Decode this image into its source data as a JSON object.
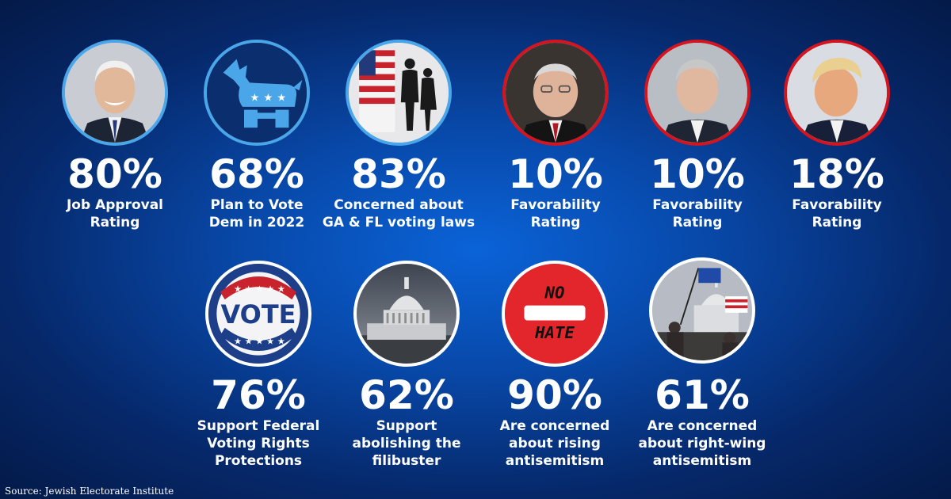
{
  "stats": [
    {
      "value": "80%",
      "label_lines": [
        "Job Approval",
        "Rating"
      ],
      "icon": "biden-portrait-icon",
      "ring": "#4aa6e8"
    },
    {
      "value": "68%",
      "label_lines": [
        "Plan to Vote",
        "Dem in 2022"
      ],
      "icon": "democratic-donkey-icon",
      "ring": "#4aa6e8"
    },
    {
      "value": "83%",
      "label_lines": [
        "Concerned about",
        "GA & FL voting laws"
      ],
      "icon": "voting-booth-icon",
      "ring": "#4aa6e8"
    },
    {
      "value": "10%",
      "label_lines": [
        "Favorability",
        "Rating"
      ],
      "icon": "mcconnell-portrait-icon",
      "ring": "#d4141e"
    },
    {
      "value": "10%",
      "label_lines": [
        "Favorability",
        "Rating"
      ],
      "icon": "mccarthy-portrait-icon",
      "ring": "#d4141e"
    },
    {
      "value": "18%",
      "label_lines": [
        "Favorability",
        "Rating"
      ],
      "icon": "trump-portrait-icon",
      "ring": "#d4141e"
    },
    {
      "value": "76%",
      "label_lines": [
        "Support Federal",
        "Voting Rights",
        "Protections"
      ],
      "icon": "vote-button-icon",
      "ring": "#ffffff"
    },
    {
      "value": "62%",
      "label_lines": [
        "Support",
        "abolishing the",
        "filibuster"
      ],
      "icon": "capitol-storm-icon",
      "ring": "#ffffff"
    },
    {
      "value": "90%",
      "label_lines": [
        "Are concerned",
        "about rising",
        "antisemitism"
      ],
      "icon": "no-hate-sign-icon",
      "ring": "#ffffff"
    },
    {
      "value": "61%",
      "label_lines": [
        "Are concerned",
        "about right-wing",
        "antisemitism"
      ],
      "icon": "capitol-riot-icon",
      "ring": "#ffffff"
    }
  ],
  "no_hate": {
    "top": "NO",
    "bottom": "HATE"
  },
  "vote_text": "VOTE",
  "source": "Source: Jewish Electorate Institute"
}
